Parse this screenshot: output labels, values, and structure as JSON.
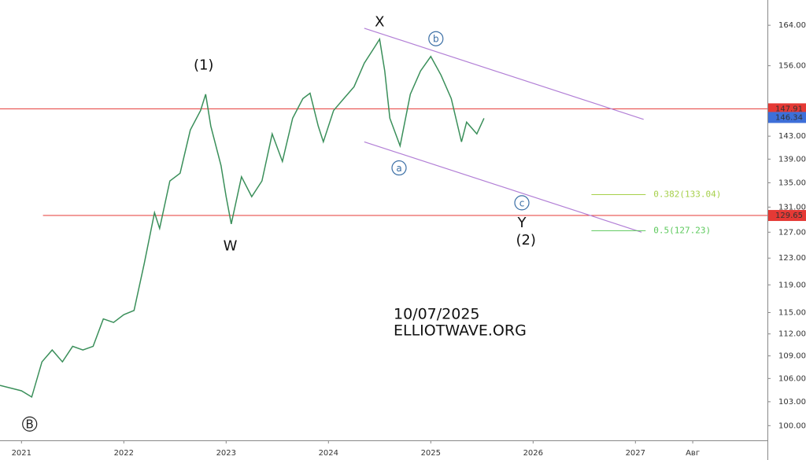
{
  "chart_data": {
    "type": "line",
    "log_scale": true,
    "xlim": [
      2020.79,
      2028.29
    ],
    "ylim": [
      98.2,
      169.2
    ],
    "xticks": [
      2021,
      2022,
      2023,
      2024,
      2025,
      2026,
      2027,
      {
        "value": 2027.56,
        "label": "Авг"
      }
    ],
    "yticks": [
      {
        "value": 100,
        "label": "100.00"
      },
      {
        "value": 103,
        "label": "103.00"
      },
      {
        "value": 106,
        "label": "106.00"
      },
      {
        "value": 109,
        "label": "109.00"
      },
      {
        "value": 112,
        "label": "112.00"
      },
      {
        "value": 115,
        "label": "115.00"
      },
      {
        "value": 119,
        "label": "119.00"
      },
      {
        "value": 123,
        "label": "123.00"
      },
      {
        "value": 127,
        "label": "127.00"
      },
      {
        "value": 131,
        "label": "131.00"
      },
      {
        "value": 135,
        "label": "135.00"
      },
      {
        "value": 139,
        "label": "139.00"
      },
      {
        "value": 143,
        "label": "143.00"
      },
      {
        "value": 156,
        "label": "156.00"
      },
      {
        "value": 164,
        "label": "164.00"
      }
    ],
    "series": [
      {
        "color": "#3a8f5a",
        "x": [
          2020.79,
          2021.0,
          2021.1,
          2021.2,
          2021.3,
          2021.4,
          2021.5,
          2021.6,
          2021.7,
          2021.8,
          2021.9,
          2022.0,
          2022.1,
          2022.2,
          2022.3,
          2022.35,
          2022.45,
          2022.55,
          2022.65,
          2022.75,
          2022.8,
          2022.85,
          2022.95,
          2023.0,
          2023.05,
          2023.15,
          2023.25,
          2023.35,
          2023.45,
          2023.55,
          2023.65,
          2023.75,
          2023.82,
          2023.9,
          2023.95,
          2024.05,
          2024.15,
          2024.25,
          2024.35,
          2024.45,
          2024.5,
          2024.55,
          2024.6,
          2024.7,
          2024.8,
          2024.9,
          2025.0,
          2025.1,
          2025.2,
          2025.3,
          2025.35,
          2025.45,
          2025.52
        ],
        "values": [
          105.1,
          104.4,
          103.6,
          108.2,
          109.8,
          108.2,
          110.3,
          109.8,
          110.3,
          114.1,
          113.6,
          114.7,
          115.3,
          122.2,
          130.1,
          127.6,
          135.3,
          136.6,
          144.1,
          147.6,
          150.6,
          144.8,
          137.9,
          132.7,
          128.3,
          136.0,
          132.7,
          135.3,
          143.4,
          138.6,
          146.2,
          149.8,
          150.8,
          144.8,
          142.0,
          147.6,
          149.8,
          152.0,
          156.5,
          159.6,
          161.2,
          155.0,
          146.2,
          141.3,
          150.6,
          155.0,
          157.8,
          154.2,
          149.8,
          142.0,
          145.5,
          143.4,
          146.2
        ]
      }
    ],
    "hlines": [
      {
        "value": 147.91,
        "color": "#e53935"
      },
      {
        "value": 129.65,
        "color": "#e53935",
        "from": 2021.21
      }
    ],
    "last_price": {
      "value": 146.34,
      "color": "#3d6fd9"
    },
    "channel": [
      {
        "color": "#b27fd6",
        "x": [
          2024.35,
          2027.08
        ],
        "values": [
          163.4,
          146.0
        ]
      },
      {
        "color": "#b27fd6",
        "x": [
          2024.35,
          2027.06
        ],
        "values": [
          142.0,
          127.0
        ]
      }
    ],
    "fib_levels": [
      {
        "label": "0.382(133.04)",
        "value": 133.04,
        "color": "#a6d04a",
        "x": [
          2026.57,
          2027.1
        ]
      },
      {
        "label": "0.5(127.23)",
        "value": 127.23,
        "color": "#5cc95c",
        "x": [
          2026.57,
          2027.1
        ]
      }
    ],
    "annotations": [
      {
        "text": "X",
        "x": 2024.5,
        "y": 164.6
      },
      {
        "text": "(1)",
        "x": 2022.78,
        "y": 156
      },
      {
        "text": "W",
        "x": 2023.04,
        "y": 124.8
      },
      {
        "text": "b",
        "x": 2025.05,
        "y": 161.3,
        "circled": true
      },
      {
        "text": "a",
        "x": 2024.69,
        "y": 137.5,
        "circled": true
      },
      {
        "text": "c",
        "x": 2025.89,
        "y": 131.7,
        "circled": true
      },
      {
        "text": "Y",
        "x": 2025.89,
        "y": 128.4
      },
      {
        "text": "(2)",
        "x": 2025.93,
        "y": 125.7
      },
      {
        "text": "B",
        "x": 2021.08,
        "y": 100.2,
        "circled": true,
        "dark": true
      }
    ],
    "watermark": [
      "10/07/2025",
      "ELLIOTWAVE.ORG"
    ]
  }
}
